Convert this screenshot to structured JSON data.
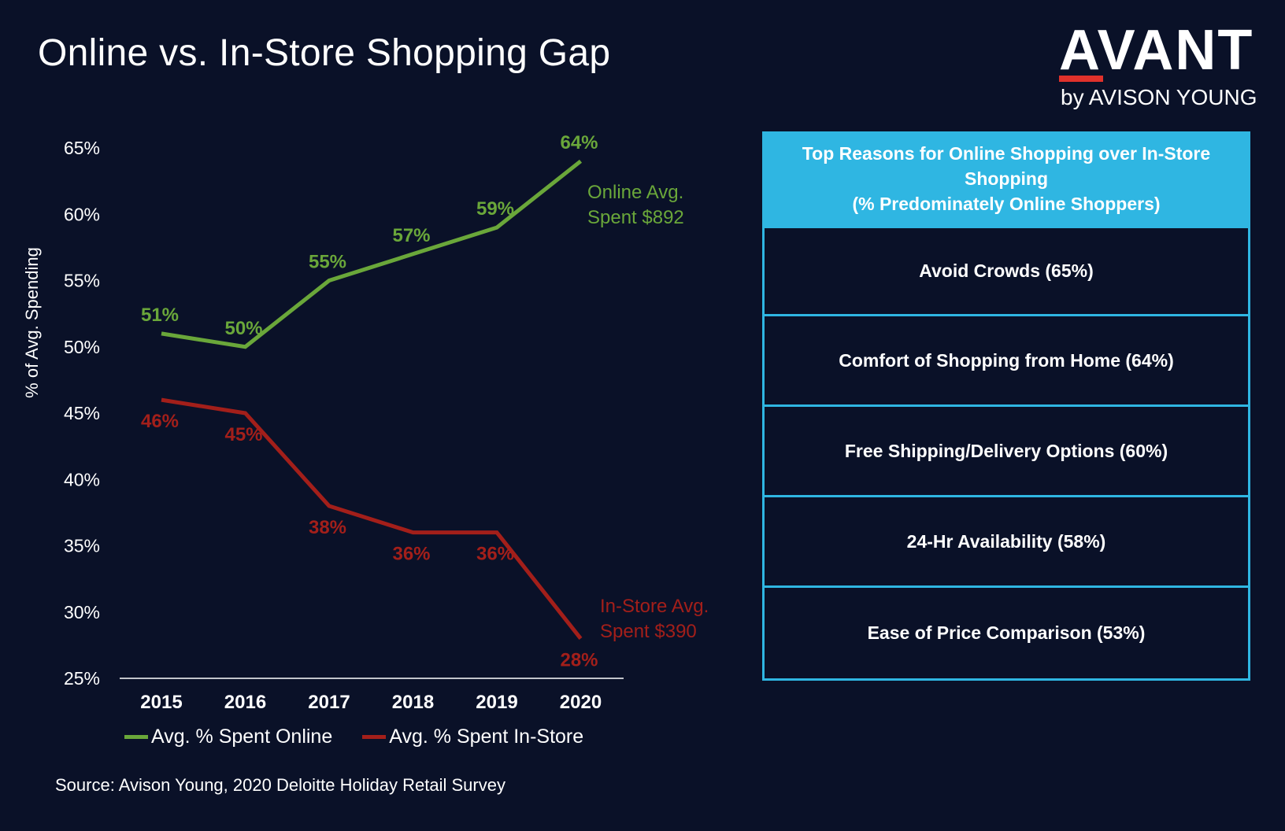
{
  "title": "Online vs. In-Store Shopping Gap",
  "logo": {
    "word": "AVANT",
    "sub": "by AVISON YOUNG"
  },
  "colors": {
    "background": "#0a1128",
    "online": "#6aa73a",
    "instore": "#a31f1a",
    "accent": "#2fb6e2",
    "logo_bar": "#e0312b"
  },
  "chart_data": {
    "type": "line",
    "x": [
      "2015",
      "2016",
      "2017",
      "2018",
      "2019",
      "2020"
    ],
    "ylabel": "% of Avg. Spending",
    "ylim": [
      25,
      65
    ],
    "yticks": [
      65,
      60,
      55,
      50,
      45,
      40,
      35,
      30,
      25
    ],
    "ytick_labels": [
      "65%",
      "60%",
      "55%",
      "50%",
      "45%",
      "40%",
      "35%",
      "30%",
      "25%"
    ],
    "grid": false,
    "legend_position": "bottom",
    "series": [
      {
        "name": "Avg. % Spent Online",
        "values": [
          51,
          50,
          55,
          57,
          59,
          64
        ],
        "labels": [
          "51%",
          "50%",
          "55%",
          "57%",
          "59%",
          "64%"
        ],
        "annotation": [
          "Online Avg.",
          "Spent $892"
        ],
        "color": "#6aa73a"
      },
      {
        "name": "Avg. % Spent In-Store",
        "values": [
          46,
          45,
          38,
          36,
          36,
          28
        ],
        "labels": [
          "46%",
          "45%",
          "38%",
          "36%",
          "36%",
          "28%"
        ],
        "annotation": [
          "In-Store Avg.",
          "Spent $390"
        ],
        "color": "#a31f1a"
      }
    ]
  },
  "reasons_table": {
    "header": [
      "Top Reasons for Online Shopping over In-Store",
      "Shopping",
      "(% Predominately Online Shoppers)"
    ],
    "rows": [
      "Avoid Crowds (65%)",
      "Comfort of Shopping from Home (64%)",
      "Free Shipping/Delivery Options (60%)",
      "24-Hr Availability (58%)",
      "Ease of Price Comparison (53%)"
    ]
  },
  "source": "Source: Avison Young, 2020 Deloitte Holiday Retail Survey"
}
